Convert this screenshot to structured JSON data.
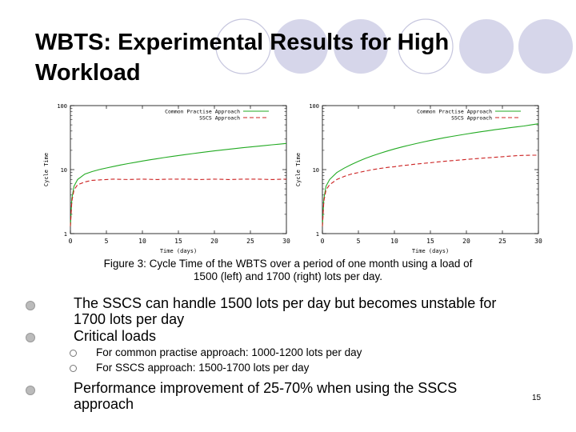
{
  "slide": {
    "title": "WBTS: Experimental Results for High Workload",
    "page_number": "15",
    "caption_lines": [
      "Figure 3: Cycle Time of the WBTS over a period of one month using a load of",
      "1500 (left) and 1700 (right) lots per day."
    ],
    "bullets": [
      {
        "text_lines": [
          "The SSCS can handle 1500 lots per day but becomes unstable for",
          "1700 lots per day"
        ]
      },
      {
        "text_lines": [
          "Critical loads"
        ]
      },
      {
        "text_lines": [
          "Performance improvement of 25-70% when using the SSCS",
          "approach"
        ]
      }
    ],
    "sub_bullets": [
      "For common practise approach: 1000-1200 lots per day",
      "For SSCS approach: 1500-1700 lots per day"
    ]
  },
  "colors": {
    "common_practise": "#22aa22",
    "sscs": "#cc2222",
    "deco_circle_fill": "#d6d6ea",
    "deco_circle_stroke": "#c6c6de"
  },
  "chart_data": [
    {
      "type": "line",
      "xlabel": "Time (days)",
      "ylabel": "Cycle Time",
      "xlim": [
        0,
        30
      ],
      "ylim": [
        1,
        100
      ],
      "yscale": "log",
      "xticks": [
        "0",
        "5",
        "10",
        "15",
        "20",
        "25",
        "30"
      ],
      "yticks": [
        "1",
        "10",
        "100"
      ],
      "legend_position": "top-right",
      "series": [
        {
          "name": "Common Practise Approach",
          "x": [
            0,
            0.2,
            0.5,
            1,
            2,
            3,
            4,
            5,
            6,
            7,
            8,
            9,
            10,
            11,
            12,
            13,
            14,
            15,
            16,
            17,
            18,
            19,
            20,
            21,
            22,
            23,
            24,
            25,
            26,
            27,
            28,
            29,
            30
          ],
          "y": [
            1.3,
            3.5,
            5.5,
            7.0,
            8.5,
            9.3,
            10.0,
            10.6,
            11.2,
            11.8,
            12.4,
            13.0,
            13.6,
            14.2,
            14.8,
            15.4,
            16.0,
            16.6,
            17.2,
            17.8,
            18.4,
            19.0,
            19.6,
            20.2,
            20.8,
            21.4,
            22.0,
            22.6,
            23.2,
            23.8,
            24.4,
            25.0,
            25.6
          ]
        },
        {
          "name": "SSCS Approach",
          "x": [
            0,
            0.2,
            0.5,
            1,
            2,
            3,
            4,
            5,
            6,
            8,
            10,
            12,
            14,
            16,
            18,
            20,
            22,
            24,
            26,
            28,
            30
          ],
          "y": [
            1.3,
            3.2,
            4.8,
            5.8,
            6.4,
            6.8,
            6.9,
            7.0,
            7.1,
            7.0,
            7.1,
            7.0,
            7.1,
            7.1,
            7.0,
            7.1,
            7.0,
            7.1,
            7.1,
            7.0,
            7.1
          ]
        }
      ]
    },
    {
      "type": "line",
      "xlabel": "Time (days)",
      "ylabel": "Cycle Time",
      "xlim": [
        0,
        30
      ],
      "ylim": [
        1,
        100
      ],
      "yscale": "log",
      "xticks": [
        "0",
        "5",
        "10",
        "15",
        "20",
        "25",
        "30"
      ],
      "yticks": [
        "1",
        "10",
        "100"
      ],
      "legend_position": "top-right",
      "series": [
        {
          "name": "Common Practise Approach",
          "x": [
            0,
            0.2,
            0.5,
            1,
            2,
            3,
            4,
            5,
            6,
            7,
            8,
            9,
            10,
            11,
            12,
            13,
            14,
            15,
            16,
            17,
            18,
            19,
            20,
            21,
            22,
            23,
            24,
            25,
            26,
            27,
            28,
            29,
            30
          ],
          "y": [
            1.3,
            3.5,
            5.5,
            7.0,
            9.0,
            10.5,
            12.0,
            13.5,
            15.0,
            16.5,
            18.0,
            19.5,
            21.0,
            22.5,
            24.0,
            25.5,
            27.0,
            28.5,
            30.0,
            31.5,
            33.0,
            34.5,
            36.0,
            37.5,
            39.0,
            40.5,
            42.0,
            43.5,
            45.0,
            46.5,
            48.0,
            50.0,
            52.0
          ]
        },
        {
          "name": "SSCS Approach",
          "x": [
            0,
            0.2,
            0.5,
            1,
            2,
            3,
            4,
            5,
            6,
            7,
            8,
            9,
            10,
            11,
            12,
            13,
            14,
            15,
            16,
            17,
            18,
            19,
            20,
            21,
            22,
            23,
            24,
            25,
            26,
            27,
            28,
            29,
            30
          ],
          "y": [
            1.3,
            3.2,
            4.8,
            5.8,
            7.0,
            7.8,
            8.5,
            9.0,
            9.5,
            10.0,
            10.4,
            10.8,
            11.1,
            11.5,
            11.8,
            12.2,
            12.5,
            12.8,
            13.2,
            13.5,
            13.8,
            14.1,
            14.4,
            14.7,
            15.0,
            15.3,
            15.6,
            15.9,
            16.2,
            16.5,
            16.7,
            16.8,
            16.8
          ]
        }
      ]
    }
  ]
}
